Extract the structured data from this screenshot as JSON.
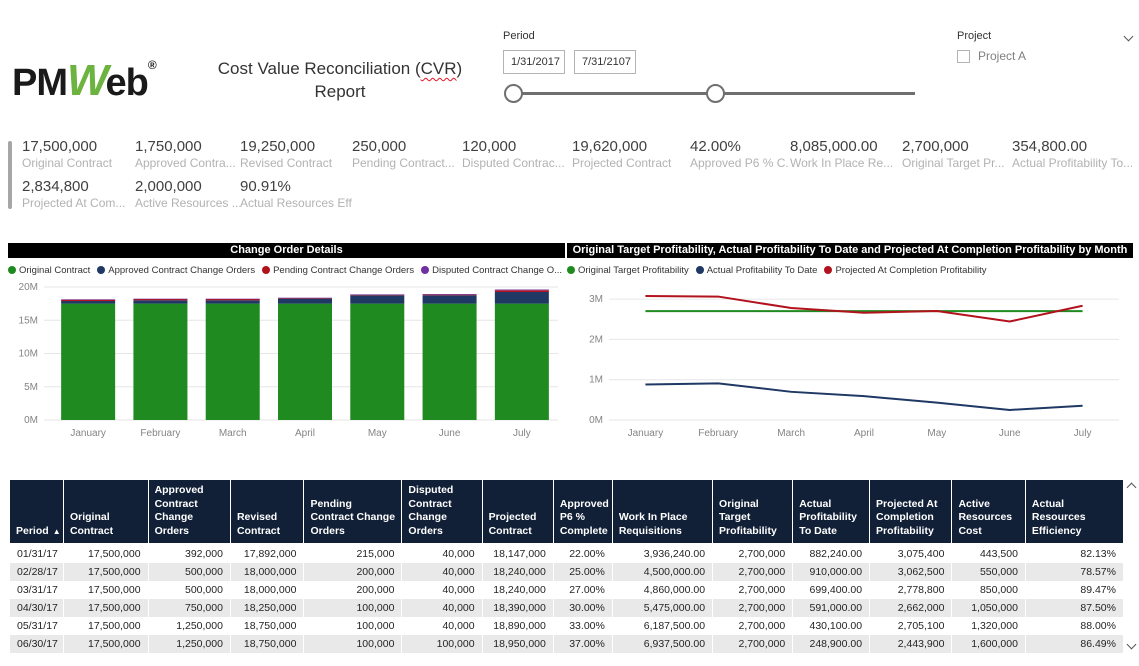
{
  "logo": {
    "part1": "PM",
    "part2": "W",
    "part3": "eb",
    "reg": "®"
  },
  "header": {
    "title_prefix": "Cost Value Reconciliation (",
    "title_cvr": "CVR",
    "title_suffix": ")",
    "title_line2": "Report"
  },
  "filters": {
    "period": {
      "label": "Period",
      "start": "1/31/2017",
      "end": "7/31/2107"
    },
    "project": {
      "label": "Project",
      "option": "Project A",
      "checked": false
    }
  },
  "kpis": {
    "row1": [
      {
        "value": "17,500,000",
        "label": "Original Contract"
      },
      {
        "value": "1,750,000",
        "label": "Approved Contra..."
      },
      {
        "value": "19,250,000",
        "label": "Revised Contract"
      },
      {
        "value": "250,000",
        "label": "Pending Contract..."
      },
      {
        "value": "120,000",
        "label": "Disputed Contrac..."
      },
      {
        "value": "19,620,000",
        "label": "Projected Contract"
      },
      {
        "value": "42.00%",
        "label": "Approved P6 % C..."
      },
      {
        "value": "8,085,000.00",
        "label": "Work In Place Re..."
      },
      {
        "value": "2,700,000",
        "label": "Original Target Pr..."
      },
      {
        "value": "354,800.00",
        "label": "Actual Profitability To..."
      }
    ],
    "row2": [
      {
        "value": "2,834,800",
        "label": "Projected At Com..."
      },
      {
        "value": "2,000,000",
        "label": "Active Resources ..."
      },
      {
        "value": "90.91%",
        "label": "Actual Resources Effi..."
      }
    ]
  },
  "colors": {
    "green": "#1f8a1f",
    "navy": "#1f3864",
    "red": "#b2121b",
    "purple": "#7030a0",
    "header_bg": "#122037",
    "logo_green": "#6cb33f"
  },
  "chart_data": [
    {
      "type": "bar",
      "stacked": true,
      "title": "Change Order Details",
      "categories": [
        "January",
        "February",
        "March",
        "April",
        "May",
        "June",
        "July"
      ],
      "series": [
        {
          "name": "Original Contract",
          "color": "#1f8a1f",
          "values": [
            17500000,
            17500000,
            17500000,
            17500000,
            17500000,
            17500000,
            17500000
          ]
        },
        {
          "name": "Approved Contract Change Orders",
          "color": "#1f3864",
          "values": [
            392000,
            500000,
            500000,
            750000,
            1250000,
            1250000,
            1750000
          ]
        },
        {
          "name": "Pending Contract Change Orders",
          "color": "#b2121b",
          "values": [
            215000,
            200000,
            200000,
            100000,
            100000,
            100000,
            250000
          ]
        },
        {
          "name": "Disputed Contract Change Orders",
          "legend_label": "Disputed Contract Change O...",
          "color": "#7030a0",
          "values": [
            40000,
            40000,
            40000,
            40000,
            40000,
            100000,
            120000
          ]
        }
      ],
      "ylim": [
        0,
        20000000
      ],
      "ytick_values": [
        0,
        5000000,
        10000000,
        15000000,
        20000000
      ],
      "ytick_labels": [
        "0M",
        "5M",
        "10M",
        "15M",
        "20M"
      ],
      "grid": true,
      "legend_position": "top"
    },
    {
      "type": "line",
      "title": "Original Target Profitability, Actual Profitability To Date and Projected At Completion Profitability by Month",
      "categories": [
        "January",
        "February",
        "March",
        "April",
        "May",
        "June",
        "July"
      ],
      "series": [
        {
          "name": "Original Target Profitability",
          "color": "#1f8a1f",
          "values": [
            2700000,
            2700000,
            2700000,
            2700000,
            2700000,
            2700000,
            2700000
          ]
        },
        {
          "name": "Actual Profitability To Date",
          "color": "#1f3864",
          "values": [
            882240,
            910000,
            699400,
            591000,
            430100,
            248900,
            354800
          ]
        },
        {
          "name": "Projected At Completion Profitability",
          "color": "#b2121b",
          "values": [
            3075400,
            3062500,
            2778800,
            2662000,
            2705100,
            2443900,
            2834800
          ]
        }
      ],
      "ylim": [
        0,
        3300000
      ],
      "ytick_values": [
        0,
        1000000,
        2000000,
        3000000
      ],
      "ytick_labels": [
        "0M",
        "1M",
        "2M",
        "3M"
      ],
      "grid": true,
      "legend_position": "top"
    }
  ],
  "table": {
    "columns": [
      {
        "label": "Period",
        "sorted": "asc",
        "align": "left"
      },
      {
        "label": "Original Contract",
        "align": "right"
      },
      {
        "label": "Approved Contract Change Orders",
        "align": "right"
      },
      {
        "label": "Revised Contract",
        "align": "right"
      },
      {
        "label": "Pending Contract Change Orders",
        "align": "right"
      },
      {
        "label": "Disputed Contract Change Orders",
        "align": "right"
      },
      {
        "label": "Projected Contract",
        "align": "right"
      },
      {
        "label": "Approved P6 % Complete",
        "align": "right"
      },
      {
        "label": "Work In Place Requisitions",
        "align": "right"
      },
      {
        "label": "Original Target Profitability",
        "align": "right"
      },
      {
        "label": "Actual Profitability To Date",
        "align": "right"
      },
      {
        "label": "Projected At Completion Profitability",
        "align": "right"
      },
      {
        "label": "Active Resources Cost",
        "align": "right"
      },
      {
        "label": "Actual Resources Efficiency",
        "align": "right"
      }
    ],
    "sort_arrow": "▲",
    "rows": [
      [
        "01/31/17",
        "17,500,000",
        "392,000",
        "17,892,000",
        "215,000",
        "40,000",
        "18,147,000",
        "22.00%",
        "3,936,240.00",
        "2,700,000",
        "882,240.00",
        "3,075,400",
        "443,500",
        "82.13%"
      ],
      [
        "02/28/17",
        "17,500,000",
        "500,000",
        "18,000,000",
        "200,000",
        "40,000",
        "18,240,000",
        "25.00%",
        "4,500,000.00",
        "2,700,000",
        "910,000.00",
        "3,062,500",
        "550,000",
        "78.57%"
      ],
      [
        "03/31/17",
        "17,500,000",
        "500,000",
        "18,000,000",
        "200,000",
        "40,000",
        "18,240,000",
        "27.00%",
        "4,860,000.00",
        "2,700,000",
        "699,400.00",
        "2,778,800",
        "850,000",
        "89.47%"
      ],
      [
        "04/30/17",
        "17,500,000",
        "750,000",
        "18,250,000",
        "100,000",
        "40,000",
        "18,390,000",
        "30.00%",
        "5,475,000.00",
        "2,700,000",
        "591,000.00",
        "2,662,000",
        "1,050,000",
        "87.50%"
      ],
      [
        "05/31/17",
        "17,500,000",
        "1,250,000",
        "18,750,000",
        "100,000",
        "40,000",
        "18,890,000",
        "33.00%",
        "6,187,500.00",
        "2,700,000",
        "430,100.00",
        "2,705,100",
        "1,320,000",
        "88.00%"
      ],
      [
        "06/30/17",
        "17,500,000",
        "1,250,000",
        "18,750,000",
        "100,000",
        "100,000",
        "18,950,000",
        "37.00%",
        "6,937,500.00",
        "2,700,000",
        "248,900.00",
        "2,443,900",
        "1,600,000",
        "86.49%"
      ]
    ]
  }
}
